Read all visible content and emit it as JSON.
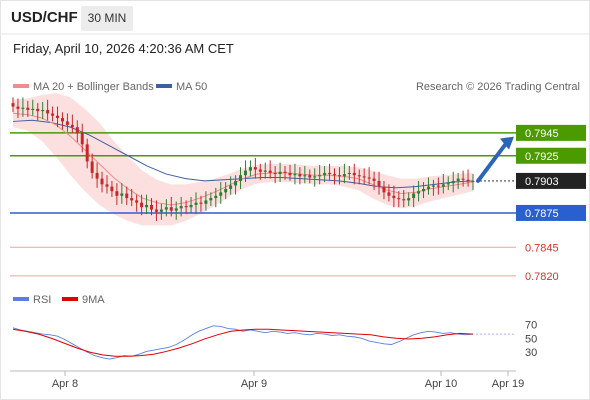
{
  "header": {
    "symbol": "USD/CHF",
    "timeframe": "30 MIN",
    "datetime": "Friday, April 10, 2026 4:20:36 AM CET"
  },
  "legend": {
    "ma20_label": "MA 20 + Bollinger Bands",
    "ma50_label": "MA 50",
    "credit": "Research © 2026 Trading Central",
    "rsi_label": "RSI",
    "ma9_label": "9MA"
  },
  "colors": {
    "up": "#2e7d32",
    "down": "#c62828",
    "bollinger": "#fbd6d6",
    "ma20": "#f28b8b",
    "ma50": "#3f5f9f",
    "resistance": "#4a9a00",
    "support": "#2a5fd0",
    "support2": "#f5a0a0",
    "arrow": "#2a66b8",
    "rsi": "#5b7fe0",
    "rsi_ma": "#e00000"
  },
  "chart_data": [
    {
      "type": "candlestick",
      "title": "USD/CHF 30 MIN",
      "x_ticks": [
        "Apr 8",
        "Apr 9",
        "Apr 10",
        "Apr 19"
      ],
      "ylim": [
        0.7812,
        0.7965
      ],
      "last_price": "0.7903",
      "levels": [
        {
          "label": "0.7945",
          "value": 0.7945,
          "kind": "resistance"
        },
        {
          "label": "0.7925",
          "value": 0.7925,
          "kind": "resistance"
        },
        {
          "label": "0.7875",
          "value": 0.7875,
          "kind": "support"
        },
        {
          "label": "0.7845",
          "value": 0.7845,
          "kind": "support2"
        },
        {
          "label": "0.7820",
          "value": 0.782,
          "kind": "support2"
        }
      ],
      "close_series": [
        0.7968,
        0.7966,
        0.7967,
        0.7965,
        0.7966,
        0.7964,
        0.7965,
        0.7962,
        0.796,
        0.7958,
        0.7955,
        0.7952,
        0.795,
        0.7945,
        0.7935,
        0.792,
        0.791,
        0.7905,
        0.79,
        0.7898,
        0.7894,
        0.789,
        0.7892,
        0.7888,
        0.7886,
        0.7884,
        0.788,
        0.7882,
        0.7878,
        0.7876,
        0.7878,
        0.788,
        0.7877,
        0.7879,
        0.7881,
        0.788,
        0.7882,
        0.7884,
        0.7883,
        0.7886,
        0.7888,
        0.789,
        0.7893,
        0.7896,
        0.7899,
        0.7903,
        0.7908,
        0.7912,
        0.7915,
        0.7913,
        0.7911,
        0.7912,
        0.791,
        0.7909,
        0.7911,
        0.791,
        0.7908,
        0.7909,
        0.7907,
        0.7908,
        0.7906,
        0.7907,
        0.7908,
        0.791,
        0.7909,
        0.7908,
        0.7907,
        0.7909,
        0.791,
        0.7908,
        0.7907,
        0.7906,
        0.7905,
        0.7903,
        0.7898,
        0.7893,
        0.789,
        0.7888,
        0.7887,
        0.7886,
        0.7888,
        0.7892,
        0.7894,
        0.7896,
        0.7898,
        0.7899,
        0.7898,
        0.79,
        0.7901,
        0.7903,
        0.7905,
        0.7904,
        0.7903,
        0.7903
      ],
      "ma20_series": [
        0.7962,
        0.7961,
        0.7958,
        0.7952,
        0.7942,
        0.793,
        0.7918,
        0.7906,
        0.7896,
        0.7888,
        0.7884,
        0.7882,
        0.7884,
        0.7888,
        0.7893,
        0.7899,
        0.7905,
        0.7909,
        0.791,
        0.791,
        0.7909,
        0.7908,
        0.7908,
        0.7907,
        0.7905,
        0.79,
        0.7895,
        0.7892,
        0.7893,
        0.7896,
        0.7898,
        0.79,
        0.7902
      ],
      "ma50_series": [
        0.7955,
        0.7956,
        0.7954,
        0.795,
        0.7943,
        0.7934,
        0.7925,
        0.7916,
        0.7909,
        0.7905,
        0.7903,
        0.7904,
        0.7905,
        0.7906,
        0.7906,
        0.7905,
        0.7904,
        0.7903,
        0.7901,
        0.7898,
        0.7897,
        0.7898,
        0.79,
        0.7902,
        0.7903
      ]
    },
    {
      "type": "line",
      "title": "RSI",
      "y_ticks": [
        "70",
        "50",
        "30"
      ],
      "ylim": [
        10,
        85
      ],
      "series": [
        {
          "name": "RSI",
          "values": [
            65,
            62,
            60,
            58,
            56,
            55,
            53,
            48,
            42,
            36,
            30,
            25,
            22,
            20,
            22,
            25,
            24,
            27,
            31,
            33,
            35,
            37,
            41,
            47,
            54,
            60,
            64,
            68,
            67,
            64,
            63,
            60,
            62,
            60,
            58,
            60,
            59,
            57,
            58,
            56,
            55,
            57,
            56,
            54,
            55,
            53,
            52,
            50,
            46,
            44,
            42,
            41,
            45,
            50,
            55,
            58,
            60,
            59,
            57,
            58,
            56,
            55,
            56
          ]
        },
        {
          "name": "9MA",
          "values": [
            63,
            60,
            56,
            50,
            43,
            36,
            30,
            26,
            24,
            24,
            25,
            27,
            31,
            36,
            42,
            49,
            55,
            60,
            62,
            63,
            63,
            62,
            61,
            60,
            59,
            58,
            57,
            56,
            55,
            52,
            50,
            49,
            50,
            52,
            55,
            57,
            56
          ]
        }
      ]
    }
  ]
}
